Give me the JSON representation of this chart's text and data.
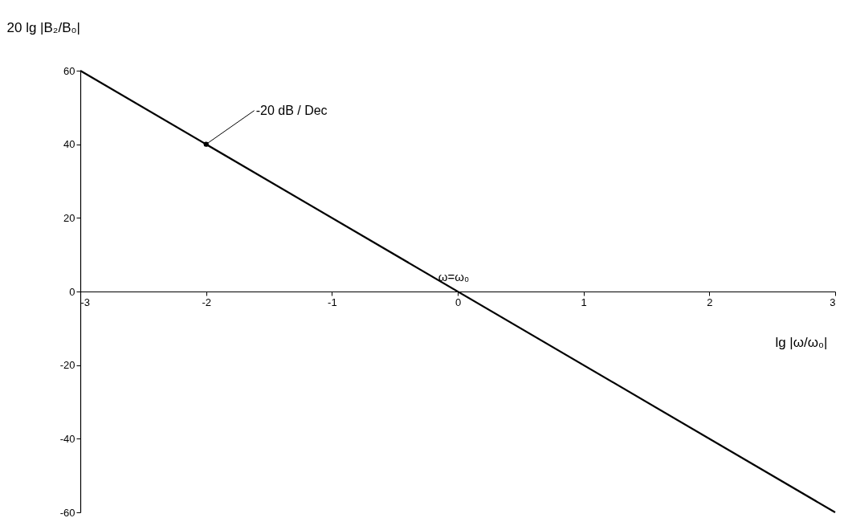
{
  "chart_data": {
    "type": "line",
    "xlabel": "lg |ω/ω₀|",
    "ylabel": "20 lg |B₂/B₀|",
    "x": [
      -3,
      3
    ],
    "series": [
      {
        "color": "#000000",
        "values": [
          60,
          -60
        ]
      }
    ],
    "xlim": [
      -3,
      3
    ],
    "xticks": [
      -3,
      -2,
      -1,
      0,
      1,
      2,
      3
    ],
    "ylim": [
      -60,
      60
    ],
    "yticks": [
      -60,
      -40,
      -20,
      0,
      20,
      40,
      60
    ],
    "grid": false,
    "marker": "none",
    "line_style": "solid",
    "annotations": [
      {
        "text": "-20 dB / Dec",
        "x": -2,
        "y": 40
      },
      {
        "text": "ω=ω₀",
        "x": 0,
        "y": 0
      }
    ]
  }
}
